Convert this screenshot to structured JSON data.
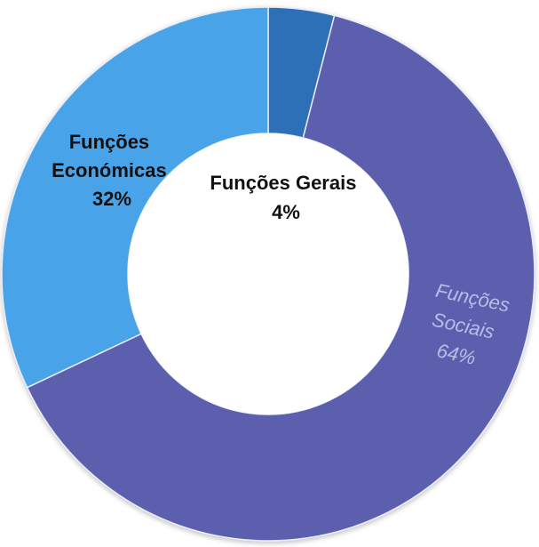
{
  "chart_data": {
    "type": "pie",
    "donut": true,
    "title": "",
    "slices": [
      {
        "name_lines": [
          "Funções Gerais"
        ],
        "pct": "4%",
        "value": 4,
        "color": "#2f6fb8"
      },
      {
        "name_lines": [
          "Funções",
          "Sociais"
        ],
        "pct": "64%",
        "value": 64,
        "color": "#5b5fae"
      },
      {
        "name_lines": [
          "Funções",
          "Económicas"
        ],
        "pct": "32%",
        "value": 32,
        "color": "#4aa3e8"
      }
    ],
    "start_angle_deg": 0,
    "direction": "clockwise"
  }
}
